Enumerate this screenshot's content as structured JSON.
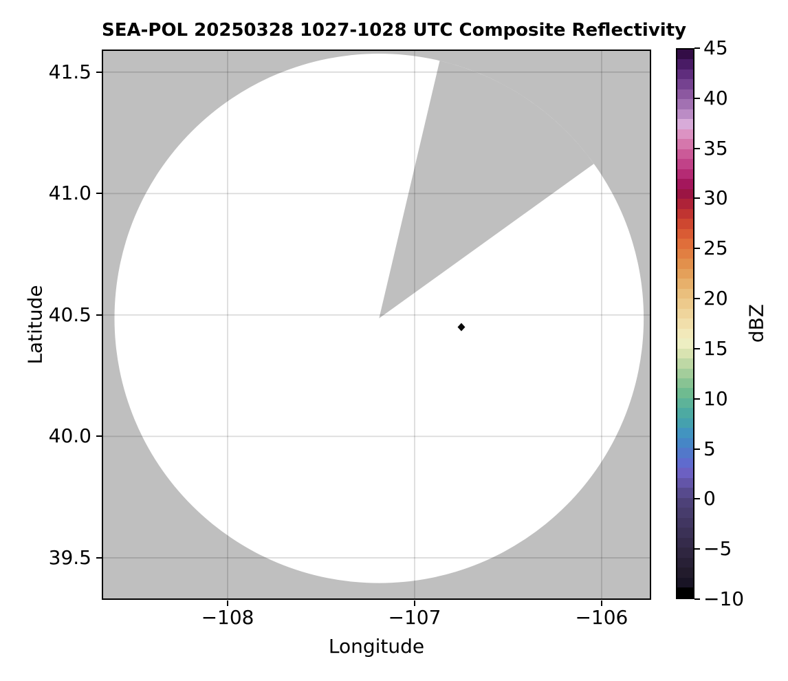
{
  "chart_data": {
    "type": "heatmap",
    "subtype": "radar-ppi-composite-reflectivity",
    "title": "SEA-POL 20250328 1027-1028 UTC Composite Reflectivity",
    "xlabel": "Longitude",
    "ylabel": "Latitude",
    "xlim": [
      -108.673,
      -105.735
    ],
    "ylim": [
      39.327,
      41.593
    ],
    "xticks": [
      -108,
      -107,
      -106
    ],
    "xtick_labels": [
      "−108",
      "−107",
      "−106"
    ],
    "yticks": [
      39.5,
      40.0,
      40.5,
      41.0,
      41.5
    ],
    "ytick_labels": [
      "39.5",
      "40.0",
      "40.5",
      "41.0",
      "41.5"
    ],
    "grid": true,
    "grid_color": "rgba(0,0,0,0.14)",
    "plot_bg": "#bfbfbf",
    "radar_coverage": {
      "center_lon": -107.19,
      "center_lat": 40.486,
      "radius_lat_deg": 1.09,
      "fill": "#ffffff",
      "blocked_sector_azimuth_deg": [
        17,
        61
      ],
      "note": "white disc = radar coverage area with no significant echo; gray = outside range or blocked sector"
    },
    "echo_markers": [
      {
        "lon": -106.75,
        "lat": 40.45,
        "shape": "diamond",
        "color": "#0a0a0a"
      }
    ],
    "colorbar": {
      "label": "dBZ",
      "vmin": -10,
      "vmax": 45,
      "band_step_dbz": 1,
      "ticks": [
        45,
        40,
        35,
        30,
        25,
        20,
        15,
        10,
        5,
        0,
        -5,
        -10
      ],
      "tick_labels": [
        "45",
        "40",
        "35",
        "30",
        "25",
        "20",
        "15",
        "10",
        "5",
        "0",
        "−5",
        "−10"
      ],
      "color_stops": [
        [
          -10,
          "#000000"
        ],
        [
          -9,
          "#191425"
        ],
        [
          -8,
          "#221b2c"
        ],
        [
          -7,
          "#282036"
        ],
        [
          -6,
          "#2f2640"
        ],
        [
          -5,
          "#352b4b"
        ],
        [
          -4,
          "#3b3156"
        ],
        [
          -3,
          "#413661"
        ],
        [
          -2,
          "#473c6c"
        ],
        [
          -1,
          "#4d4178"
        ],
        [
          0,
          "#574a8d"
        ],
        [
          1,
          "#6355a8"
        ],
        [
          2,
          "#6c60c2"
        ],
        [
          3,
          "#5f6bce"
        ],
        [
          4,
          "#5278ca"
        ],
        [
          5,
          "#4686c6"
        ],
        [
          6,
          "#4294c0"
        ],
        [
          7,
          "#45a1ae"
        ],
        [
          8,
          "#4daaa2"
        ],
        [
          9,
          "#5db399"
        ],
        [
          10,
          "#6fbb90"
        ],
        [
          11,
          "#88c393"
        ],
        [
          12,
          "#a3cd9b"
        ],
        [
          13,
          "#bed8a5"
        ],
        [
          14,
          "#d9e3b1"
        ],
        [
          15,
          "#edeec2"
        ],
        [
          16,
          "#f2e9ba"
        ],
        [
          17,
          "#f1dfab"
        ],
        [
          18,
          "#efd59c"
        ],
        [
          19,
          "#edca8c"
        ],
        [
          20,
          "#eabf7d"
        ],
        [
          21,
          "#e7b06b"
        ],
        [
          22,
          "#e4a05a"
        ],
        [
          23,
          "#e2904c"
        ],
        [
          24,
          "#e17f42"
        ],
        [
          25,
          "#e06e3a"
        ],
        [
          26,
          "#d95b34"
        ],
        [
          27,
          "#ce4730"
        ],
        [
          28,
          "#c03431"
        ],
        [
          29,
          "#ae2338"
        ],
        [
          30,
          "#9b1543"
        ],
        [
          31,
          "#a4175c"
        ],
        [
          32,
          "#b52b74"
        ],
        [
          33,
          "#c14288"
        ],
        [
          34,
          "#cb5a98"
        ],
        [
          35,
          "#d577ac"
        ],
        [
          36,
          "#dc93c3"
        ],
        [
          37,
          "#d8abd9"
        ],
        [
          38,
          "#bb8cc5"
        ],
        [
          39,
          "#a271b2"
        ],
        [
          40,
          "#8c58a0"
        ],
        [
          41,
          "#754290"
        ],
        [
          42,
          "#5f2d7d"
        ],
        [
          43,
          "#491b65"
        ],
        [
          44,
          "#330d46"
        ],
        [
          45,
          "#2a0a3b"
        ]
      ]
    }
  }
}
